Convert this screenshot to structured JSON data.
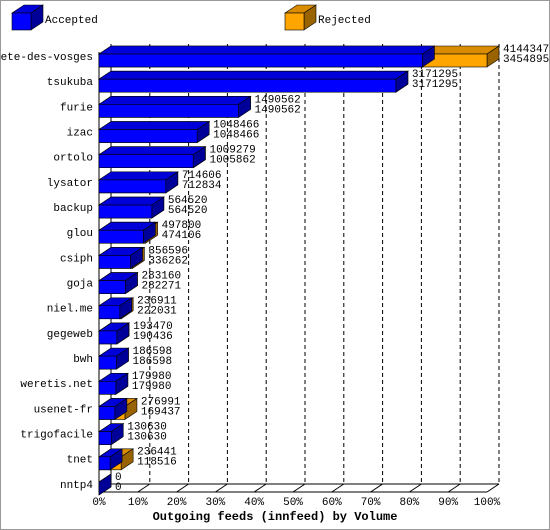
{
  "chart_data": {
    "type": "bar3d",
    "title": "Outgoing feeds (innfeed) by Volume",
    "categories": [
      "bete-des-vosges",
      "tsukuba",
      "furie",
      "izac",
      "ortolo",
      "lysator",
      "backup",
      "glou",
      "csiph",
      "goja",
      "niel.me",
      "gegeweb",
      "bwh",
      "weretis.net",
      "usenet-fr",
      "trigofacile",
      "tnet",
      "nntp4"
    ],
    "series": [
      {
        "name": "Accepted",
        "color": "#0000ff",
        "values": [
          3454895,
          3171295,
          1490562,
          1048466,
          1005862,
          712834,
          564520,
          474106,
          336262,
          282271,
          222031,
          190436,
          186598,
          179980,
          169437,
          130630,
          118516,
          0
        ]
      },
      {
        "name": "Rejected",
        "color": "#ffa500",
        "values": [
          4144347,
          3171295,
          1490562,
          1048466,
          1009279,
          714606,
          564520,
          497800,
          356596,
          283160,
          236911,
          193470,
          186598,
          179980,
          276991,
          130630,
          236441,
          0
        ]
      }
    ],
    "xlim": [
      0,
      4144347
    ],
    "xticks": [
      {
        "value": 0,
        "label": "0%"
      },
      {
        "value": 414434.7,
        "label": "10%"
      },
      {
        "value": 828869.4,
        "label": "20%"
      },
      {
        "value": 1243304.1,
        "label": "30%"
      },
      {
        "value": 1657738.8,
        "label": "40%"
      },
      {
        "value": 2072173.5,
        "label": "50%"
      },
      {
        "value": 2486608.2,
        "label": "60%"
      },
      {
        "value": 2901042.9,
        "label": "70%"
      },
      {
        "value": 3315477.6,
        "label": "80%"
      },
      {
        "value": 3729912.3,
        "label": "90%"
      },
      {
        "value": 4144347,
        "label": "100%"
      }
    ],
    "grid": true
  }
}
